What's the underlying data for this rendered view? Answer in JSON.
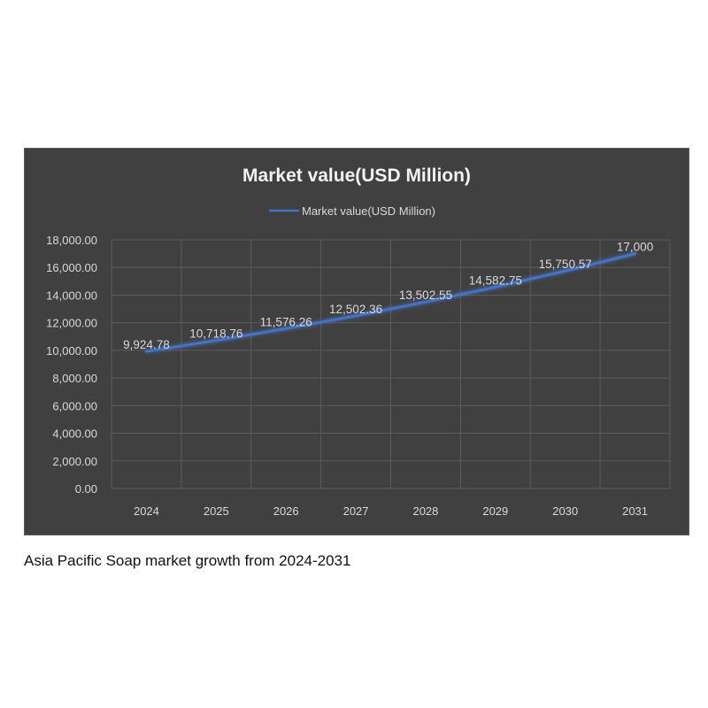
{
  "caption": "Asia Pacific Soap market growth from 2024-2031",
  "chart_data": {
    "type": "line",
    "title": "Market value(USD Million)",
    "legend_position": "top",
    "grid": true,
    "categories": [
      "2024",
      "2025",
      "2026",
      "2027",
      "2028",
      "2029",
      "2030",
      "2031"
    ],
    "series": [
      {
        "name": "Market value(USD Million)",
        "values": [
          9924.78,
          10718.76,
          11576.26,
          12502.36,
          13502.55,
          14582.75,
          15750.57,
          17000
        ],
        "data_labels": [
          "9,924.78",
          "10,718.76",
          "11,576.26",
          "12,502.36",
          "13,502.55",
          "14,582.75",
          "15,750.57",
          "17,000"
        ]
      }
    ],
    "ylim": [
      0,
      18000
    ],
    "yticks": [
      0,
      2000,
      4000,
      6000,
      8000,
      10000,
      12000,
      14000,
      16000,
      18000
    ],
    "ytick_labels": [
      "0.00",
      "2,000.00",
      "4,000.00",
      "6,000.00",
      "8,000.00",
      "10,000.00",
      "12,000.00",
      "14,000.00",
      "16,000.00",
      "18,000.00"
    ],
    "colors": {
      "background": "#404040",
      "line": "#4472c4",
      "grid": "#5c5c5c",
      "text": "#d9d9d9",
      "title": "#f2f2f2"
    }
  }
}
